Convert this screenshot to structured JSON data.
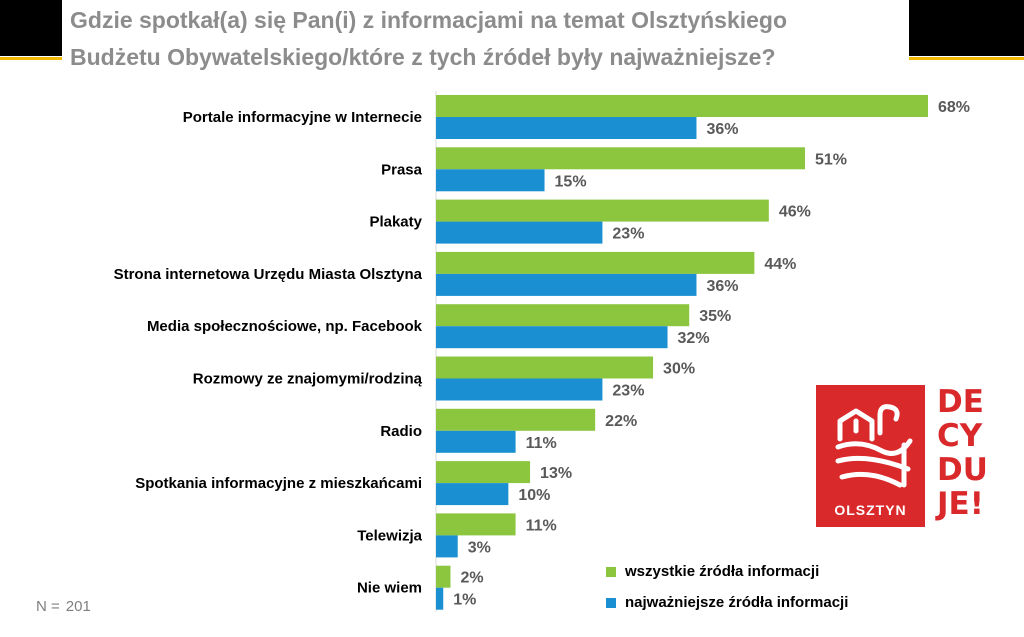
{
  "title": {
    "line1": "Gdzie spotkał(a) się Pan(i) z informacjami na temat Olsztyńskiego",
    "line2": "Budżetu Obywatelskiego/które z tych źródeł były najważniejsze?"
  },
  "sample": {
    "label": "N =",
    "value": "201"
  },
  "logo": {
    "city": "OLSZTYN",
    "words": [
      "DE",
      "CY",
      "DU",
      "JE!"
    ],
    "color": "#d9292b"
  },
  "chart_data": {
    "type": "bar",
    "orientation": "horizontal",
    "title": "Gdzie spotkał(a) się Pan(i) z informacjami na temat Olsztyńskiego Budżetu Obywatelskiego/które z tych źródeł były najważniejsze?",
    "categories": [
      "Portale informacyjne w Internecie",
      "Prasa",
      "Plakaty",
      "Strona internetowa Urzędu Miasta Olsztyna",
      "Media społecznościowe, np. Facebook",
      "Rozmowy ze znajomymi/rodziną",
      "Radio",
      "Spotkania informacyjne z mieszkańcami",
      "Telewizja",
      "Nie wiem"
    ],
    "series": [
      {
        "name": "wszystkie źródła informacji",
        "color": "#8cc63f",
        "values": [
          68,
          51,
          46,
          44,
          35,
          30,
          22,
          13,
          11,
          2
        ]
      },
      {
        "name": "najważniejsze źródła informacji",
        "color": "#1a8fd1",
        "values": [
          36,
          15,
          23,
          36,
          32,
          23,
          11,
          10,
          3,
          1
        ]
      }
    ],
    "value_suffix": "%",
    "xlim": [
      0,
      70
    ],
    "grid": false,
    "legend_position": "bottom-right"
  }
}
